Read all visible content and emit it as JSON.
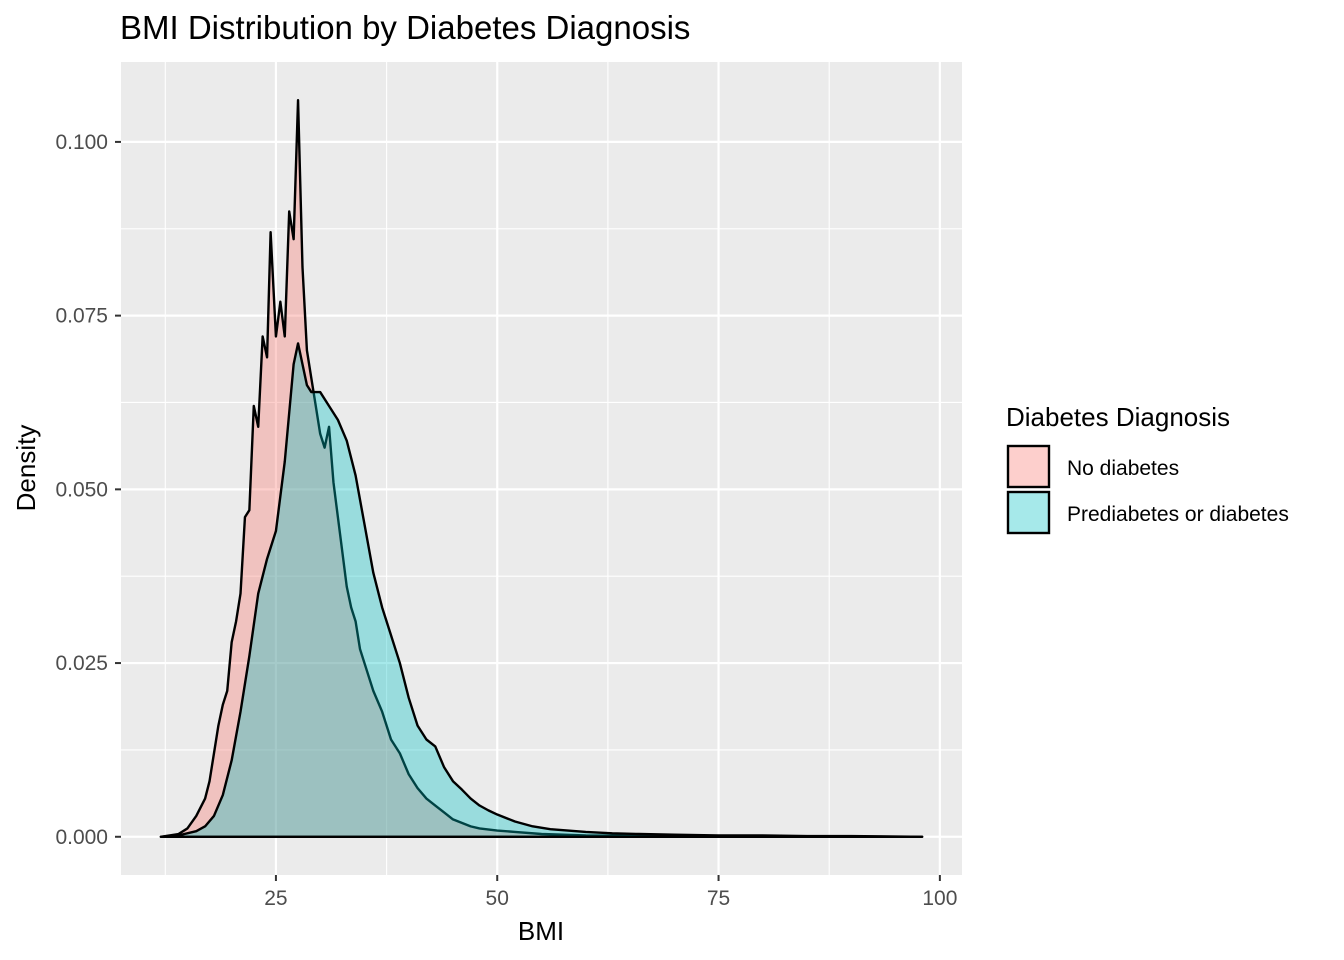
{
  "chart_data": {
    "type": "area",
    "subtype": "density",
    "title": "BMI Distribution by Diabetes Diagnosis",
    "xlabel": "BMI",
    "ylabel": "Density",
    "xlim": [
      7.5,
      102.5
    ],
    "ylim": [
      -0.0055,
      0.1115
    ],
    "x_ticks": [
      25,
      50,
      75,
      100
    ],
    "x_tick_labels": [
      "25",
      "50",
      "75",
      "100"
    ],
    "y_ticks": [
      0,
      0.025,
      0.05,
      0.075,
      0.1
    ],
    "y_tick_labels": [
      "0.000",
      "0.025",
      "0.050",
      "0.075",
      "0.100"
    ],
    "grid": true,
    "legend": {
      "title": "Diabetes Diagnosis",
      "position": "right"
    },
    "series": [
      {
        "name": "No diabetes",
        "color": "#F8766D",
        "points": [
          [
            12,
            0
          ],
          [
            14,
            0.0004
          ],
          [
            15,
            0.0012
          ],
          [
            16,
            0.003
          ],
          [
            17,
            0.0055
          ],
          [
            17.5,
            0.008
          ],
          [
            18,
            0.012
          ],
          [
            18.5,
            0.016
          ],
          [
            19,
            0.019
          ],
          [
            19.5,
            0.021
          ],
          [
            20,
            0.028
          ],
          [
            20.5,
            0.031
          ],
          [
            21,
            0.035
          ],
          [
            21.5,
            0.046
          ],
          [
            22,
            0.047
          ],
          [
            22.5,
            0.062
          ],
          [
            23,
            0.059
          ],
          [
            23.5,
            0.072
          ],
          [
            24,
            0.069
          ],
          [
            24.4,
            0.087
          ],
          [
            25,
            0.072
          ],
          [
            25.5,
            0.077
          ],
          [
            26,
            0.072
          ],
          [
            26.5,
            0.09
          ],
          [
            27,
            0.086
          ],
          [
            27.5,
            0.106
          ],
          [
            28,
            0.082
          ],
          [
            28.5,
            0.07
          ],
          [
            29,
            0.066
          ],
          [
            29.5,
            0.062
          ],
          [
            30,
            0.058
          ],
          [
            30.5,
            0.056
          ],
          [
            31,
            0.059
          ],
          [
            31.5,
            0.051
          ],
          [
            32,
            0.046
          ],
          [
            32.5,
            0.041
          ],
          [
            33,
            0.036
          ],
          [
            33.5,
            0.033
          ],
          [
            34,
            0.031
          ],
          [
            34.5,
            0.027
          ],
          [
            35,
            0.025
          ],
          [
            36,
            0.021
          ],
          [
            37,
            0.018
          ],
          [
            38,
            0.014
          ],
          [
            39,
            0.012
          ],
          [
            40,
            0.009
          ],
          [
            41,
            0.007
          ],
          [
            42,
            0.0055
          ],
          [
            43,
            0.0045
          ],
          [
            44,
            0.0035
          ],
          [
            45,
            0.0025
          ],
          [
            46,
            0.002
          ],
          [
            47,
            0.0015
          ],
          [
            48,
            0.0012
          ],
          [
            50,
            0.0009
          ],
          [
            52,
            0.0007
          ],
          [
            55,
            0.0004
          ],
          [
            60,
            0.0002
          ],
          [
            70,
            0.0001
          ],
          [
            98,
            0
          ]
        ]
      },
      {
        "name": "Prediabetes or diabetes",
        "color": "#00BFC4",
        "points": [
          [
            12,
            0
          ],
          [
            14,
            0.0002
          ],
          [
            16,
            0.0008
          ],
          [
            17,
            0.0015
          ],
          [
            18,
            0.003
          ],
          [
            19,
            0.006
          ],
          [
            20,
            0.011
          ],
          [
            21,
            0.018
          ],
          [
            22,
            0.026
          ],
          [
            23,
            0.035
          ],
          [
            24,
            0.04
          ],
          [
            25,
            0.044
          ],
          [
            26,
            0.054
          ],
          [
            27,
            0.068
          ],
          [
            27.5,
            0.071
          ],
          [
            28,
            0.068
          ],
          [
            28.5,
            0.065
          ],
          [
            29,
            0.064
          ],
          [
            30,
            0.064
          ],
          [
            31,
            0.062
          ],
          [
            32,
            0.06
          ],
          [
            33,
            0.057
          ],
          [
            34,
            0.052
          ],
          [
            35,
            0.045
          ],
          [
            36,
            0.038
          ],
          [
            37,
            0.033
          ],
          [
            38,
            0.029
          ],
          [
            39,
            0.025
          ],
          [
            40,
            0.02
          ],
          [
            41,
            0.016
          ],
          [
            42,
            0.014
          ],
          [
            43,
            0.013
          ],
          [
            44,
            0.01
          ],
          [
            45,
            0.008
          ],
          [
            46,
            0.0068
          ],
          [
            47,
            0.0055
          ],
          [
            48,
            0.0045
          ],
          [
            49,
            0.0038
          ],
          [
            50,
            0.0032
          ],
          [
            52,
            0.0022
          ],
          [
            54,
            0.0015
          ],
          [
            56,
            0.0011
          ],
          [
            58,
            0.0009
          ],
          [
            60,
            0.0007
          ],
          [
            63,
            0.0005
          ],
          [
            66,
            0.0004
          ],
          [
            70,
            0.0003
          ],
          [
            75,
            0.0002
          ],
          [
            80,
            0.0002
          ],
          [
            85,
            0.0001
          ],
          [
            90,
            0.0001
          ],
          [
            98,
            0
          ]
        ]
      }
    ]
  }
}
